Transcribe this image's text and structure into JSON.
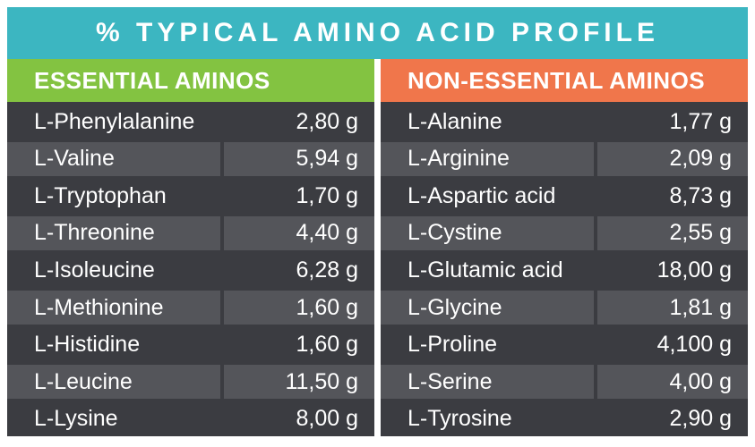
{
  "title": "% TYPICAL AMINO ACID PROFILE",
  "unit": "g",
  "colors": {
    "teal": "#3cb6c1",
    "green": "#83c341",
    "orange": "#f0764b",
    "row_light": "#54555a",
    "row_dark": "#3b3c41",
    "text_white": "#ffffff"
  },
  "columns": [
    {
      "id": "essential",
      "header": "ESSENTIAL AMINOS",
      "rows": [
        {
          "name": "L-Phenylalanine",
          "value": "2,80 g"
        },
        {
          "name": "L-Valine",
          "value": "5,94 g"
        },
        {
          "name": "L-Tryptophan",
          "value": "1,70 g"
        },
        {
          "name": "L-Threonine",
          "value": "4,40 g"
        },
        {
          "name": "L-Isoleucine",
          "value": "6,28 g"
        },
        {
          "name": "L-Methionine",
          "value": "1,60 g"
        },
        {
          "name": "L-Histidine",
          "value": "1,60 g"
        },
        {
          "name": "L-Leucine",
          "value": "11,50 g"
        },
        {
          "name": "L-Lysine",
          "value": "8,00 g"
        }
      ]
    },
    {
      "id": "non_essential",
      "header": "NON-ESSENTIAL AMINOS",
      "rows": [
        {
          "name": "L-Alanine",
          "value": "1,77 g"
        },
        {
          "name": "L-Arginine",
          "value": "2,09 g"
        },
        {
          "name": "L-Aspartic acid",
          "value": "8,73 g"
        },
        {
          "name": "L-Cystine",
          "value": "2,55 g"
        },
        {
          "name": "L-Glutamic acid",
          "value": "18,00 g"
        },
        {
          "name": "L-Glycine",
          "value": "1,81 g"
        },
        {
          "name": "L-Proline",
          "value": "4,100 g"
        },
        {
          "name": "L-Serine",
          "value": "4,00 g"
        },
        {
          "name": "L-Tyrosine",
          "value": "2,90 g"
        }
      ]
    }
  ]
}
